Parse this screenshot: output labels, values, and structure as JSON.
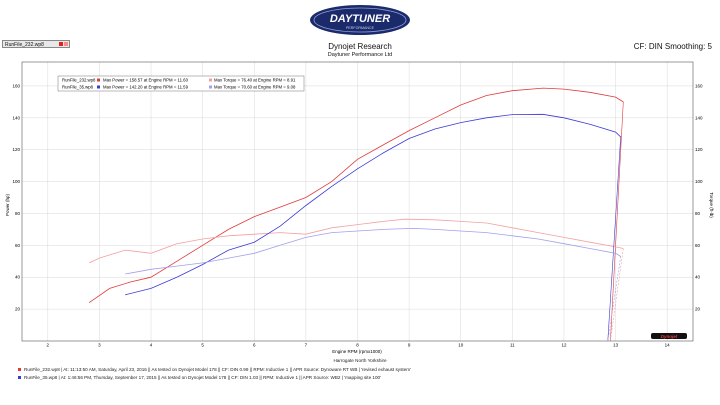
{
  "header": {
    "logo_text": "DAYTUNER",
    "logo_subtext": "PERFORMANCE",
    "title": "Dynojet Research",
    "subtitle": "Daytuner Performance Ltd",
    "cf_label": "CF: DIN Smoothing: 5",
    "tab_label": "RunFile_232.wp8"
  },
  "footer": {
    "location": "Harrogate North Yorkshire",
    "run1": "RunFile_232.wp8 | At: 11:13:50 AM, Saturday, April 23, 2016 || As tested on Dynojet Model 178 || CF: DIN 0.99 || RPM: Inductive 1 || APR Source: Dynoware RT WB | 'revised exhaust system'",
    "run2": "RunFile_35.wp8 | At: 1:46:56 PM, Thursday, September 17, 2015 || As tested on Dynojet Model 178 || CF: DIN 1.03 || RPM: Inductive 1 || APR Source: WB2 | 'mapping site 100'"
  },
  "colors": {
    "run1": "#e23a3a",
    "run1_light": "#f2a0a0",
    "run2": "#3a3ad8",
    "run2_light": "#a0a0ee"
  },
  "chart_data": {
    "type": "line",
    "xlabel": "Engine RPM (rpmx1000)",
    "ylabel": "Power (hp)",
    "y2label": "Torque (ft-lb)",
    "xlim": [
      1.5,
      14.5
    ],
    "ylim": [
      0,
      175
    ],
    "xticks": [
      2,
      3,
      4,
      5,
      6,
      7,
      8,
      9,
      10,
      11,
      12,
      13,
      14
    ],
    "yticks": [
      20,
      40,
      60,
      80,
      100,
      120,
      140,
      160
    ],
    "grid": true,
    "legend_position": "top-left",
    "legend": [
      {
        "file": "RunFile_232.wp8",
        "power": "Max Power = 158.57 at Engine RPM = 11.60",
        "torque": "Max Torque = 76.40 at Engine RPM = 8.91"
      },
      {
        "file": "RunFile_35.wp8",
        "power": "Max Power = 142.20 at Engine RPM = 11.59",
        "torque": "Max Torque = 70.60 at Engine RPM = 9.08"
      }
    ],
    "series": [
      {
        "name": "RunFile_232.wp8",
        "measure": "power",
        "x": [
          2.8,
          3.2,
          3.6,
          4,
          4.5,
          5,
          5.5,
          6,
          6.5,
          7,
          7.5,
          8,
          8.5,
          9,
          9.5,
          10,
          10.5,
          11,
          11.6,
          12,
          12.5,
          13,
          13.15
        ],
        "y": [
          24,
          33,
          37,
          40,
          50,
          60,
          70,
          78,
          84,
          90,
          100,
          114,
          123,
          132,
          140,
          148,
          154,
          157,
          158.6,
          158,
          156,
          153,
          150
        ]
      },
      {
        "name": "RunFile_232.wp8",
        "measure": "torque",
        "x": [
          2.8,
          3,
          3.5,
          4,
          4.5,
          5,
          5.5,
          6,
          6.5,
          7,
          7.5,
          8,
          8.5,
          8.91,
          9.5,
          10,
          10.5,
          11,
          11.5,
          12,
          12.5,
          13,
          13.15
        ],
        "y": [
          49,
          52,
          57,
          55,
          61,
          64,
          66,
          67,
          68,
          67,
          71,
          73,
          75,
          76.4,
          76,
          75,
          74,
          71,
          68,
          65,
          62,
          59,
          58
        ]
      },
      {
        "name": "RunFile_35.wp8",
        "measure": "power",
        "x": [
          3.5,
          4,
          4.5,
          5,
          5.5,
          6,
          6.5,
          7,
          7.5,
          8,
          8.5,
          9,
          9.5,
          10,
          10.5,
          11,
          11.59,
          12,
          12.5,
          13,
          13.1
        ],
        "y": [
          29,
          33,
          40,
          48,
          57,
          62,
          72,
          85,
          97,
          108,
          118,
          127,
          133,
          137,
          140,
          142,
          142.2,
          140,
          136,
          131,
          128
        ]
      },
      {
        "name": "RunFile_35.wp8",
        "measure": "torque",
        "x": [
          3.5,
          4,
          4.5,
          5,
          5.5,
          6,
          6.5,
          7,
          7.5,
          8,
          8.5,
          9.08,
          9.5,
          10,
          10.5,
          11,
          11.5,
          12,
          12.5,
          13,
          13.1
        ],
        "y": [
          42,
          45,
          47,
          49,
          52,
          55,
          60,
          65,
          68,
          69,
          70,
          70.6,
          70,
          69,
          68,
          66,
          64,
          61,
          58,
          55,
          53
        ]
      }
    ]
  }
}
